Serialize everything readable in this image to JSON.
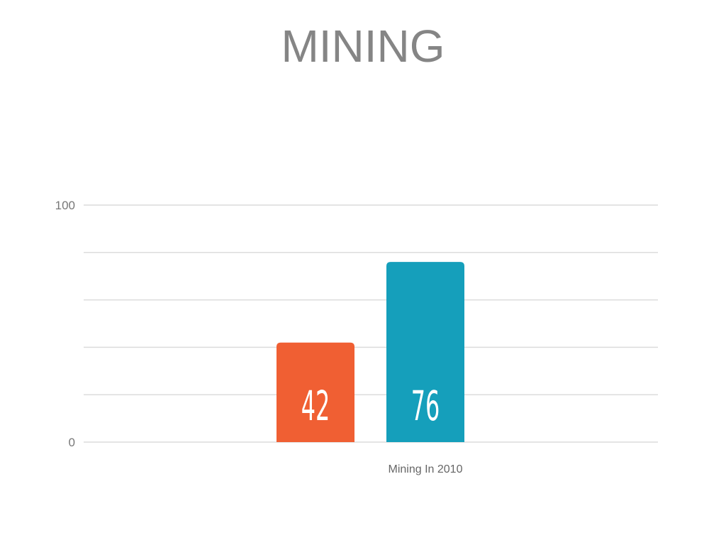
{
  "chart_data": {
    "type": "bar",
    "title": "MINING",
    "categories": [
      "Mining In 2010"
    ],
    "series": [
      {
        "values": [
          42
        ],
        "color": "#f05f33"
      },
      {
        "values": [
          76
        ],
        "color": "#159fbb"
      }
    ],
    "ylim": [
      0,
      100
    ],
    "yticks_labeled": [
      0,
      100
    ],
    "grid_step": 20,
    "grid": true,
    "data_labels": [
      "42",
      "76"
    ],
    "xlabel": "",
    "ylabel": ""
  }
}
